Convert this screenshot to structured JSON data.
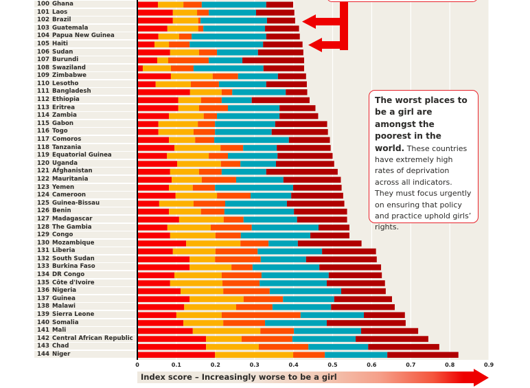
{
  "chart_data": {
    "type": "bar",
    "stacked": true,
    "orientation": "horizontal",
    "title": "",
    "xlabel": "Index score – Increasingly worse to be a girl",
    "ylabel": "",
    "xlim": [
      0,
      0.9
    ],
    "xticks": [
      "0",
      "0.1",
      "0.2",
      "0.3",
      "0.4",
      "0.5",
      "0.6",
      "0.7",
      "0.8",
      "0.9"
    ],
    "grid": true,
    "segment_colors": [
      "#f90000",
      "#fdb100",
      "#fe4e00",
      "#00a3b8",
      "#b00000"
    ],
    "rows": [
      {
        "rank": "100",
        "country": "Ghana",
        "cum": [
          0.053,
          0.118,
          0.165,
          0.33,
          0.399
        ]
      },
      {
        "rank": "101",
        "country": "Laos",
        "cum": [
          0.091,
          0.153,
          0.183,
          0.304,
          0.402
        ]
      },
      {
        "rank": "102",
        "country": "Brazil",
        "cum": [
          0.091,
          0.156,
          0.162,
          0.332,
          0.404
        ]
      },
      {
        "rank": "103",
        "country": "Guatemala",
        "cum": [
          0.077,
          0.156,
          0.169,
          0.327,
          0.414
        ]
      },
      {
        "rank": "104",
        "country": "Papua New Guinea",
        "cum": [
          0.054,
          0.107,
          0.139,
          0.33,
          0.416
        ]
      },
      {
        "rank": "105",
        "country": "Haiti",
        "cum": [
          0.044,
          0.081,
          0.134,
          0.322,
          0.423
        ]
      },
      {
        "rank": "106",
        "country": "Sudan",
        "cum": [
          0.084,
          0.158,
          0.204,
          0.309,
          0.425
        ]
      },
      {
        "rank": "107",
        "country": "Burundi",
        "cum": [
          0.051,
          0.079,
          0.183,
          0.269,
          0.427
        ]
      },
      {
        "rank": "108",
        "country": "Swaziland",
        "cum": [
          0.014,
          0.086,
          0.144,
          0.323,
          0.427
        ]
      },
      {
        "rank": "109",
        "country": "Zimbabwe",
        "cum": [
          0.086,
          0.193,
          0.258,
          0.36,
          0.432
        ]
      },
      {
        "rank": "110",
        "country": "Lesotho",
        "cum": [
          0.047,
          0.137,
          0.209,
          0.33,
          0.434
        ]
      },
      {
        "rank": "111",
        "country": "Bangladesh",
        "cum": [
          0.135,
          0.216,
          0.243,
          0.38,
          0.435
        ]
      },
      {
        "rank": "112",
        "country": "Ethiopia",
        "cum": [
          0.105,
          0.163,
          0.216,
          0.293,
          0.441
        ]
      },
      {
        "rank": "113",
        "country": "Eritrea",
        "cum": [
          0.105,
          0.158,
          0.232,
          0.364,
          0.456
        ]
      },
      {
        "rank": "114",
        "country": "Zambia",
        "cum": [
          0.081,
          0.17,
          0.204,
          0.364,
          0.463
        ]
      },
      {
        "rank": "115",
        "country": "Gabon",
        "cum": [
          0.054,
          0.155,
          0.199,
          0.353,
          0.486
        ]
      },
      {
        "rank": "116",
        "country": "Togo",
        "cum": [
          0.054,
          0.144,
          0.199,
          0.344,
          0.488
        ]
      },
      {
        "rank": "117",
        "country": "Comoros",
        "cum": [
          0.081,
          0.148,
          0.197,
          0.388,
          0.493
        ]
      },
      {
        "rank": "118",
        "country": "Tanzania",
        "cum": [
          0.095,
          0.213,
          0.271,
          0.357,
          0.495
        ]
      },
      {
        "rank": "119",
        "country": "Equatorial Guinea",
        "cum": [
          0.076,
          0.183,
          0.232,
          0.359,
          0.5
        ]
      },
      {
        "rank": "120",
        "country": "Uganda",
        "cum": [
          0.102,
          0.214,
          0.264,
          0.355,
          0.504
        ]
      },
      {
        "rank": "121",
        "country": "Afghanistan",
        "cum": [
          0.084,
          0.158,
          0.216,
          0.33,
          0.513
        ]
      },
      {
        "rank": "122",
        "country": "Mauritania",
        "cum": [
          0.088,
          0.165,
          0.253,
          0.374,
          0.521
        ]
      },
      {
        "rank": "123",
        "country": "Yemen",
        "cum": [
          0.081,
          0.142,
          0.199,
          0.399,
          0.523
        ]
      },
      {
        "rank": "124",
        "country": "Cameroon",
        "cum": [
          0.098,
          0.204,
          0.29,
          0.394,
          0.527
        ]
      },
      {
        "rank": "125",
        "country": "Guinea-Bissau",
        "cum": [
          0.056,
          0.144,
          0.225,
          0.383,
          0.53
        ]
      },
      {
        "rank": "126",
        "country": "Benin",
        "cum": [
          0.081,
          0.163,
          0.223,
          0.401,
          0.537
        ]
      },
      {
        "rank": "127",
        "country": "Madagascar",
        "cum": [
          0.107,
          0.221,
          0.272,
          0.409,
          0.537
        ]
      },
      {
        "rank": "128",
        "country": "The Gambia",
        "cum": [
          0.077,
          0.188,
          0.293,
          0.464,
          0.543
        ]
      },
      {
        "rank": "129",
        "country": "Congo",
        "cum": [
          0.084,
          0.2,
          0.265,
          0.443,
          0.543
        ]
      },
      {
        "rank": "130",
        "country": "Mozambique",
        "cum": [
          0.125,
          0.264,
          0.336,
          0.411,
          0.574
        ]
      },
      {
        "rank": "131",
        "country": "Liberia",
        "cum": [
          0.091,
          0.2,
          0.308,
          0.473,
          0.611
        ]
      },
      {
        "rank": "132",
        "country": "South Sudan",
        "cum": [
          0.134,
          0.199,
          0.316,
          0.432,
          0.613
        ]
      },
      {
        "rank": "133",
        "country": "Burkina Faso",
        "cum": [
          0.134,
          0.241,
          0.295,
          0.466,
          0.624
        ]
      },
      {
        "rank": "134",
        "country": "DR Congo",
        "cum": [
          0.095,
          0.216,
          0.318,
          0.49,
          0.626
        ]
      },
      {
        "rank": "135",
        "country": "Côte d'Ivoire",
        "cum": [
          0.084,
          0.218,
          0.313,
          0.485,
          0.634
        ]
      },
      {
        "rank": "136",
        "country": "Nigeria",
        "cum": [
          0.111,
          0.22,
          0.339,
          0.522,
          0.636
        ]
      },
      {
        "rank": "137",
        "country": "Guinea",
        "cum": [
          0.134,
          0.272,
          0.373,
          0.504,
          0.652
        ]
      },
      {
        "rank": "138",
        "country": "Malawi",
        "cum": [
          0.12,
          0.253,
          0.346,
          0.496,
          0.659
        ]
      },
      {
        "rank": "139",
        "country": "Sierra Leone",
        "cum": [
          0.1,
          0.216,
          0.418,
          0.58,
          0.685
        ]
      },
      {
        "rank": "140",
        "country": "Somalia",
        "cum": [
          0.118,
          0.22,
          0.327,
          0.485,
          0.687
        ]
      },
      {
        "rank": "141",
        "country": "Mali",
        "cum": [
          0.142,
          0.315,
          0.401,
          0.573,
          0.719
        ]
      },
      {
        "rank": "142",
        "country": "Central African Republic",
        "cum": [
          0.176,
          0.267,
          0.397,
          0.559,
          0.745
        ]
      },
      {
        "rank": "143",
        "country": "Chad",
        "cum": [
          0.176,
          0.311,
          0.438,
          0.591,
          0.773
        ]
      },
      {
        "rank": "144",
        "country": "Niger",
        "cum": [
          0.199,
          0.399,
          0.48,
          0.64,
          0.822
        ]
      }
    ],
    "annotations": {
      "callout_bold": "The worst places to be a girl are amongst the poorest in the world.",
      "callout_text": "These countries have extremely high rates of deprivation across all indicators. They must focus urgently on ensuring that policy and practice uphold girls’ rights.",
      "arrows_point_to": [
        "Brazil",
        "Haiti"
      ]
    }
  }
}
